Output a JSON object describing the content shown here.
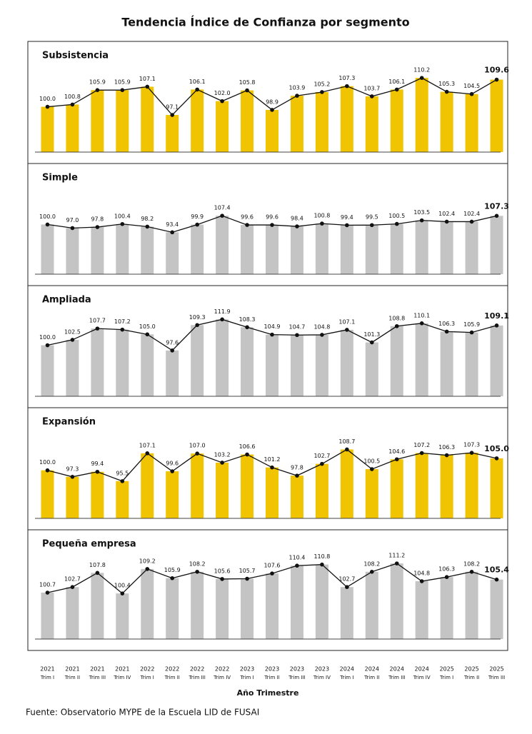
{
  "title": "Tendencia Índice de Confianza por segmento",
  "source": "Fuente: Observatorio MYPE de la Escuela LID de FUSAI",
  "chart_data": [
    {
      "type": "bar-line",
      "title": "Subsistencia",
      "color": "#f0c400",
      "line_color": "#111111",
      "ylim": [
        84,
        112
      ],
      "values": [
        100.0,
        100.8,
        105.9,
        105.9,
        107.1,
        97.1,
        106.1,
        102.0,
        105.8,
        98.9,
        103.9,
        105.2,
        107.3,
        103.7,
        106.1,
        110.2,
        105.3,
        104.5,
        109.6
      ],
      "value_labels": [
        "100.0",
        "100.8",
        "105.9",
        "105.9",
        "107.1",
        "97.1",
        "106.1",
        "102.0",
        "105.8",
        "98.9",
        "103.9",
        "105.2",
        "107.3",
        "103.7",
        "106.1",
        "110.2",
        "105.3",
        "104.5",
        "109.6"
      ]
    },
    {
      "type": "bar-line",
      "title": "Simple",
      "color": "#c4c4c4",
      "line_color": "#111111",
      "ylim": [
        58,
        125
      ],
      "values": [
        100.0,
        97.0,
        97.8,
        100.4,
        98.2,
        93.4,
        99.9,
        107.4,
        99.6,
        99.6,
        98.4,
        100.8,
        99.4,
        99.5,
        100.5,
        103.5,
        102.4,
        102.4,
        107.3
      ],
      "value_labels": [
        "100.0",
        "97.0",
        "97.8",
        "100.4",
        "98.2",
        "93.4",
        "99.9",
        "107.4",
        "99.6",
        "99.6",
        "98.4",
        "100.8",
        "99.4",
        "99.5",
        "100.5",
        "103.5",
        "102.4",
        "102.4",
        "107.3"
      ]
    },
    {
      "type": "bar-line",
      "title": "Ampliada",
      "color": "#c4c4c4",
      "line_color": "#111111",
      "ylim": [
        76.5,
        113
      ],
      "values": [
        100.0,
        102.5,
        107.7,
        107.2,
        105.0,
        97.6,
        109.3,
        111.9,
        108.3,
        104.9,
        104.7,
        104.8,
        107.1,
        101.3,
        108.8,
        110.1,
        106.3,
        105.9,
        109.1
      ],
      "value_labels": [
        "100.0",
        "102.5",
        "107.7",
        "107.2",
        "105.0",
        "97.6",
        "109.3",
        "111.9",
        "108.3",
        "104.9",
        "104.7",
        "104.8",
        "107.1",
        "101.3",
        "108.8",
        "110.1",
        "106.3",
        "105.9",
        "109.1"
      ]
    },
    {
      "type": "bar-line",
      "title": "Expansión",
      "color": "#f0c400",
      "line_color": "#111111",
      "ylim": [
        80,
        113
      ],
      "values": [
        100.0,
        97.3,
        99.4,
        95.5,
        107.1,
        99.6,
        107.0,
        103.2,
        106.6,
        101.2,
        97.8,
        102.7,
        108.7,
        100.5,
        104.6,
        107.2,
        106.3,
        107.3,
        105.0
      ],
      "value_labels": [
        "100.0",
        "97.3",
        "99.4",
        "95.5",
        "107.1",
        "99.6",
        "107.0",
        "103.2",
        "106.6",
        "101.2",
        "97.8",
        "102.7",
        "108.7",
        "100.5",
        "104.6",
        "107.2",
        "106.3",
        "107.3",
        "105.0"
      ]
    },
    {
      "type": "bar-line",
      "title": "Pequeña empresa",
      "color": "#c4c4c4",
      "line_color": "#111111",
      "ylim": [
        84,
        112
      ],
      "values": [
        100.7,
        102.7,
        107.8,
        100.4,
        109.2,
        105.9,
        108.2,
        105.6,
        105.7,
        107.6,
        110.4,
        110.8,
        102.7,
        108.2,
        111.2,
        104.8,
        106.3,
        108.2,
        105.4
      ],
      "value_labels": [
        "100.7",
        "102.7",
        "107.8",
        "100.4",
        "109.2",
        "105.9",
        "108.2",
        "105.6",
        "105.7",
        "107.6",
        "110.4",
        "110.8",
        "102.7",
        "108.2",
        "111.2",
        "104.8",
        "106.3",
        "108.2",
        "105.4"
      ],
      "x_label": "Año Trimestre",
      "categories": [
        [
          "2021",
          "Trim I"
        ],
        [
          "2021",
          "Trim II"
        ],
        [
          "2021",
          "Trim III"
        ],
        [
          "2021",
          "Trim IV"
        ],
        [
          "2022",
          "Trim I"
        ],
        [
          "2022",
          "Trim II"
        ],
        [
          "2022",
          "Trim III"
        ],
        [
          "2022",
          "Trim IV"
        ],
        [
          "2023",
          "Trim I"
        ],
        [
          "2023",
          "Trim II"
        ],
        [
          "2023",
          "Trim III"
        ],
        [
          "2023",
          "Trim IV"
        ],
        [
          "2024",
          "Trim I"
        ],
        [
          "2024",
          "Trim II"
        ],
        [
          "2024",
          "Trim III"
        ],
        [
          "2024",
          "Trim IV"
        ],
        [
          "2025",
          "Trim I"
        ],
        [
          "2025",
          "Trim II"
        ],
        [
          "2025",
          "Trim III"
        ]
      ]
    }
  ]
}
